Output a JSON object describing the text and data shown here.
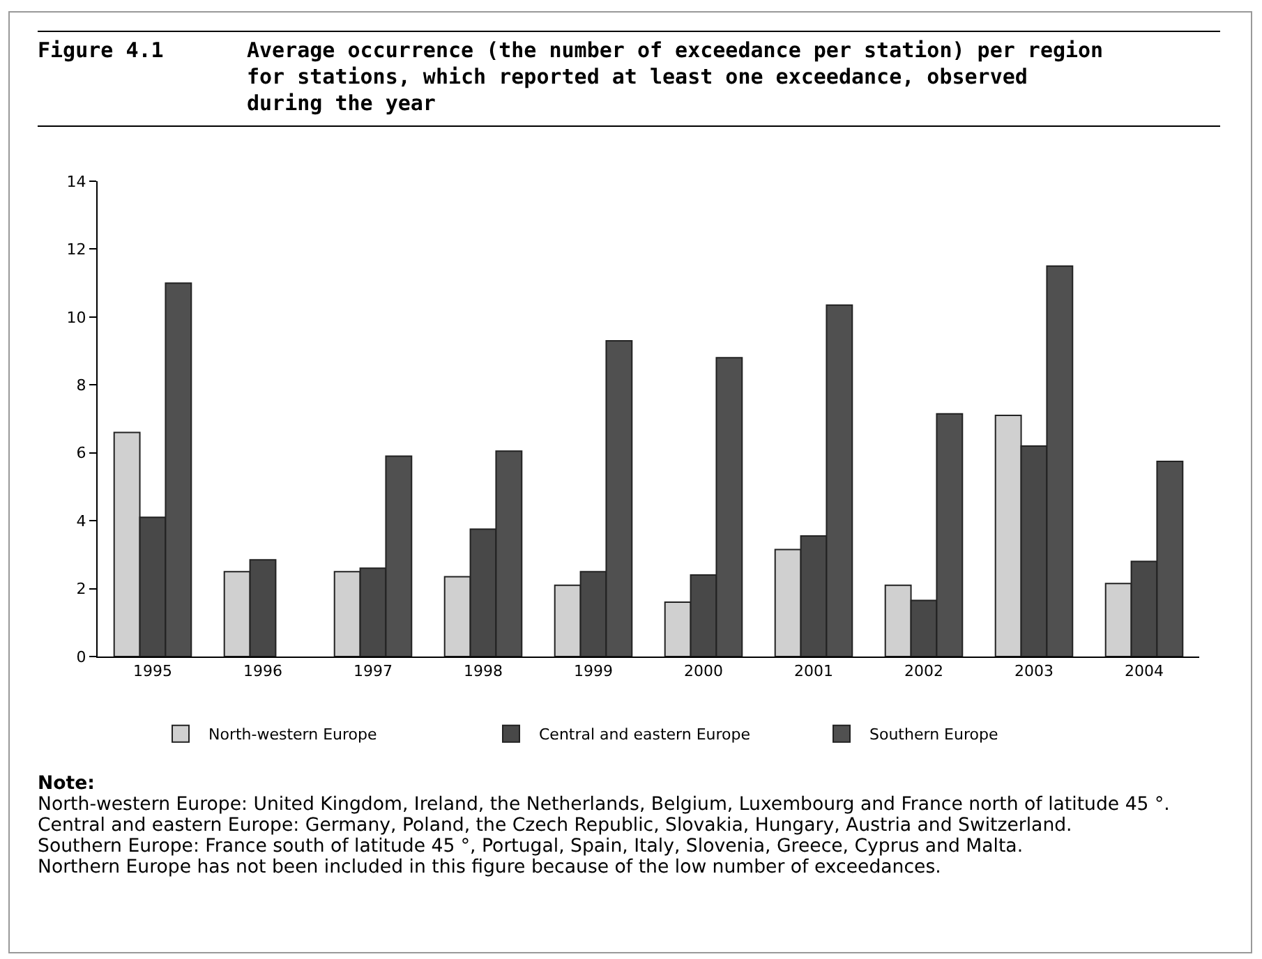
{
  "chart_data": {
    "type": "bar",
    "title": "Average occurrence (the number of exceedance per station) per region for stations, which reported at least one exceedance, observed during the year",
    "categories": [
      "1995",
      "1996",
      "1997",
      "1998",
      "1999",
      "2000",
      "2001",
      "2002",
      "2003",
      "2004"
    ],
    "series": [
      {
        "name": "North-western Europe",
        "color": "#d0d0d0",
        "values": [
          6.6,
          2.5,
          2.5,
          2.35,
          2.1,
          1.6,
          3.15,
          2.1,
          7.1,
          2.15
        ]
      },
      {
        "name": "Central and eastern Europe",
        "color": "#484848",
        "values": [
          4.1,
          2.85,
          2.6,
          3.75,
          2.5,
          2.4,
          3.55,
          1.65,
          6.2,
          2.8
        ]
      },
      {
        "name": "Southern Europe",
        "color": "#505050",
        "values": [
          11.0,
          null,
          5.9,
          6.05,
          9.3,
          8.8,
          10.35,
          7.15,
          11.5,
          5.75
        ]
      }
    ],
    "ylim": [
      0,
      14
    ],
    "yticks": [
      0,
      2,
      4,
      6,
      8,
      10,
      12,
      14
    ],
    "grid": false,
    "legend": "bottom",
    "annotations": [
      "Figure 4.1",
      "Note:",
      "North-western Europe: United Kingdom, Ireland, the Netherlands, Belgium, Luxembourg and France north of latitude 45 °.",
      "Central and eastern Europe: Germany, Poland, the Czech Republic, Slovakia, Hungary, Austria and Switzerland.",
      "Southern Europe: France south of latitude 45 °, Portugal, Spain, Italy, Slovenia, Greece, Cyprus and Malta.",
      "Northern Europe has not been included in this figure because of the low number of exceedances."
    ]
  }
}
